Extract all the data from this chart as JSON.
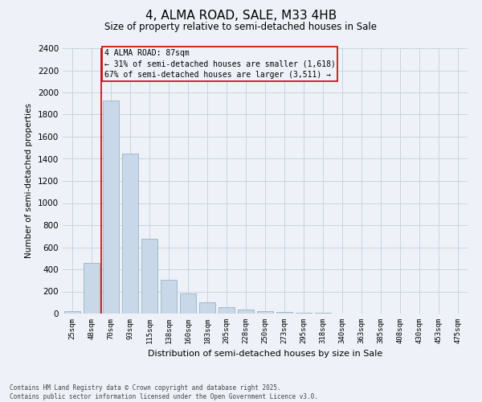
{
  "title": "4, ALMA ROAD, SALE, M33 4HB",
  "subtitle": "Size of property relative to semi-detached houses in Sale",
  "xlabel": "Distribution of semi-detached houses by size in Sale",
  "ylabel": "Number of semi-detached properties",
  "bar_color": "#c8d8e8",
  "bar_edge_color": "#8aaabb",
  "grid_color": "#c8d4e0",
  "background_color": "#eef2f8",
  "categories": [
    "25sqm",
    "48sqm",
    "70sqm",
    "93sqm",
    "115sqm",
    "138sqm",
    "160sqm",
    "183sqm",
    "205sqm",
    "228sqm",
    "250sqm",
    "273sqm",
    "295sqm",
    "318sqm",
    "340sqm",
    "363sqm",
    "385sqm",
    "408sqm",
    "430sqm",
    "453sqm",
    "475sqm"
  ],
  "values": [
    20,
    455,
    1930,
    1450,
    680,
    305,
    185,
    100,
    60,
    35,
    25,
    15,
    10,
    5,
    3,
    2,
    1,
    1,
    0,
    0,
    0
  ],
  "annotation_text_line1": "4 ALMA ROAD: 87sqm",
  "annotation_text_line2": "← 31% of semi-detached houses are smaller (1,618)",
  "annotation_text_line3": "67% of semi-detached houses are larger (3,511) →",
  "ylim": [
    0,
    2400
  ],
  "yticks": [
    0,
    200,
    400,
    600,
    800,
    1000,
    1200,
    1400,
    1600,
    1800,
    2000,
    2200,
    2400
  ],
  "footer": "Contains HM Land Registry data © Crown copyright and database right 2025.\nContains public sector information licensed under the Open Government Licence v3.0.",
  "red_line_color": "#cc0000",
  "box_edge_color": "#cc0000",
  "line_x_index": 2
}
